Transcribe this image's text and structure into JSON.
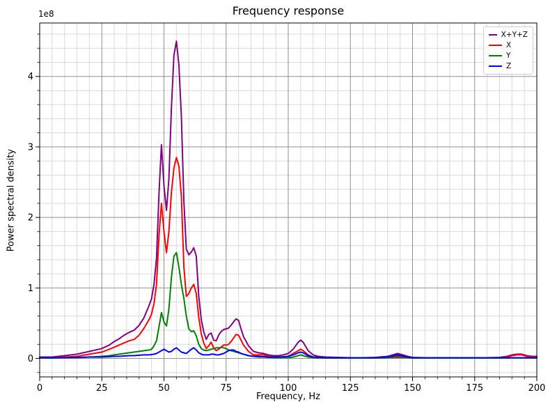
{
  "figure": {
    "title": "Frequency response",
    "xlabel": "Frequency, Hz",
    "ylabel": "Power spectral density",
    "offset_text": "1e8"
  },
  "chart_data": {
    "type": "line",
    "title": "Frequency response",
    "xlabel": "Frequency, Hz",
    "ylabel": "Power spectral density",
    "y_offset_label": "1e8",
    "y_units": "values in units of 1e8 (power spectral density)",
    "xlim": [
      0,
      200
    ],
    "ylim_1e8": [
      -0.26,
      4.76
    ],
    "xticks": [
      0,
      25,
      50,
      75,
      100,
      125,
      150,
      175,
      200
    ],
    "yticks_1e8": [
      0,
      1,
      2,
      3,
      4
    ],
    "x_minor_step": 5,
    "y_minor_step_1e8": 0.2,
    "grid": "major+minor",
    "legend_position": "upper right",
    "x": [
      0,
      5,
      10,
      15,
      20,
      25,
      28,
      30,
      32,
      34,
      36,
      38,
      40,
      42,
      44,
      45,
      46,
      47,
      48,
      49,
      50,
      51,
      52,
      53,
      54,
      55,
      56,
      57,
      58,
      59,
      60,
      61,
      62,
      63,
      64,
      65,
      66,
      67,
      68,
      69,
      70,
      71,
      72,
      73,
      74,
      75,
      76,
      77,
      78,
      79,
      80,
      81,
      82,
      84,
      86,
      88,
      90,
      92,
      94,
      96,
      98,
      100,
      102,
      104,
      105,
      106,
      108,
      110,
      112,
      115,
      120,
      125,
      130,
      135,
      140,
      142,
      144,
      146,
      148,
      150,
      155,
      160,
      165,
      170,
      175,
      180,
      185,
      188,
      190,
      192,
      194,
      196,
      198,
      200
    ],
    "series": [
      {
        "name": "X+Y+Z",
        "color": "#800080",
        "values": [
          0.02,
          0.02,
          0.04,
          0.06,
          0.1,
          0.14,
          0.19,
          0.24,
          0.28,
          0.33,
          0.37,
          0.4,
          0.47,
          0.58,
          0.75,
          0.85,
          1.05,
          1.42,
          2.35,
          3.03,
          2.45,
          2.1,
          2.55,
          3.55,
          4.3,
          4.5,
          4.17,
          3.44,
          2.23,
          1.55,
          1.47,
          1.51,
          1.57,
          1.45,
          0.88,
          0.55,
          0.38,
          0.27,
          0.34,
          0.36,
          0.26,
          0.25,
          0.33,
          0.38,
          0.41,
          0.42,
          0.43,
          0.47,
          0.52,
          0.56,
          0.54,
          0.42,
          0.31,
          0.18,
          0.1,
          0.08,
          0.07,
          0.05,
          0.04,
          0.04,
          0.05,
          0.07,
          0.13,
          0.23,
          0.26,
          0.23,
          0.11,
          0.05,
          0.03,
          0.02,
          0.015,
          0.01,
          0.01,
          0.015,
          0.03,
          0.05,
          0.07,
          0.05,
          0.03,
          0.015,
          0.01,
          0.01,
          0.01,
          0.01,
          0.01,
          0.01,
          0.015,
          0.03,
          0.05,
          0.06,
          0.06,
          0.04,
          0.03,
          0.03
        ]
      },
      {
        "name": "X",
        "color": "#ff0000",
        "values": [
          0.01,
          0.01,
          0.02,
          0.03,
          0.06,
          0.09,
          0.13,
          0.16,
          0.19,
          0.22,
          0.25,
          0.27,
          0.33,
          0.43,
          0.55,
          0.63,
          0.78,
          1.05,
          1.75,
          2.2,
          1.8,
          1.5,
          1.8,
          2.35,
          2.7,
          2.85,
          2.73,
          2.3,
          1.3,
          0.88,
          0.92,
          1.0,
          1.05,
          0.92,
          0.58,
          0.35,
          0.22,
          0.14,
          0.18,
          0.23,
          0.15,
          0.11,
          0.13,
          0.16,
          0.19,
          0.19,
          0.2,
          0.24,
          0.29,
          0.34,
          0.33,
          0.26,
          0.19,
          0.1,
          0.05,
          0.05,
          0.05,
          0.03,
          0.02,
          0.02,
          0.02,
          0.03,
          0.07,
          0.11,
          0.13,
          0.11,
          0.05,
          0.02,
          0.015,
          0.01,
          0.008,
          0.006,
          0.006,
          0.008,
          0.01,
          0.012,
          0.015,
          0.012,
          0.01,
          0.008,
          0.006,
          0.006,
          0.006,
          0.006,
          0.006,
          0.006,
          0.008,
          0.02,
          0.04,
          0.05,
          0.05,
          0.03,
          0.02,
          0.02
        ]
      },
      {
        "name": "Y",
        "color": "#008000",
        "values": [
          0.005,
          0.005,
          0.01,
          0.01,
          0.02,
          0.03,
          0.04,
          0.05,
          0.06,
          0.07,
          0.08,
          0.09,
          0.1,
          0.11,
          0.12,
          0.13,
          0.18,
          0.25,
          0.45,
          0.65,
          0.52,
          0.46,
          0.7,
          1.15,
          1.45,
          1.5,
          1.3,
          1.05,
          0.85,
          0.6,
          0.42,
          0.38,
          0.39,
          0.32,
          0.2,
          0.14,
          0.12,
          0.11,
          0.12,
          0.13,
          0.14,
          0.15,
          0.15,
          0.16,
          0.15,
          0.14,
          0.12,
          0.11,
          0.1,
          0.09,
          0.08,
          0.07,
          0.06,
          0.04,
          0.03,
          0.02,
          0.02,
          0.015,
          0.01,
          0.01,
          0.01,
          0.01,
          0.02,
          0.04,
          0.05,
          0.04,
          0.02,
          0.01,
          0.008,
          0.006,
          0.005,
          0.005,
          0.005,
          0.006,
          0.01,
          0.02,
          0.03,
          0.02,
          0.01,
          0.006,
          0.005,
          0.005,
          0.005,
          0.005,
          0.005,
          0.005,
          0.005,
          0.006,
          0.008,
          0.01,
          0.008,
          0.006,
          0.005,
          0.005
        ]
      },
      {
        "name": "Z",
        "color": "#0000ff",
        "values": [
          0.01,
          0.01,
          0.01,
          0.015,
          0.02,
          0.02,
          0.025,
          0.03,
          0.03,
          0.035,
          0.04,
          0.04,
          0.045,
          0.05,
          0.05,
          0.055,
          0.06,
          0.07,
          0.09,
          0.11,
          0.13,
          0.11,
          0.09,
          0.1,
          0.13,
          0.15,
          0.12,
          0.09,
          0.08,
          0.07,
          0.1,
          0.13,
          0.15,
          0.12,
          0.08,
          0.06,
          0.05,
          0.05,
          0.05,
          0.06,
          0.06,
          0.05,
          0.05,
          0.06,
          0.07,
          0.09,
          0.11,
          0.12,
          0.12,
          0.1,
          0.09,
          0.07,
          0.06,
          0.04,
          0.03,
          0.03,
          0.025,
          0.02,
          0.02,
          0.02,
          0.025,
          0.03,
          0.05,
          0.08,
          0.09,
          0.08,
          0.04,
          0.02,
          0.015,
          0.01,
          0.01,
          0.01,
          0.01,
          0.01,
          0.02,
          0.035,
          0.05,
          0.035,
          0.02,
          0.01,
          0.01,
          0.01,
          0.01,
          0.01,
          0.01,
          0.01,
          0.01,
          0.01,
          0.01,
          0.01,
          0.01,
          0.01,
          0.01,
          0.01
        ]
      }
    ]
  },
  "style_colors": {
    "major_grid": "#8f8f8f",
    "minor_grid": "#d9d9d9",
    "frame": "#000000",
    "background": "#ffffff"
  }
}
